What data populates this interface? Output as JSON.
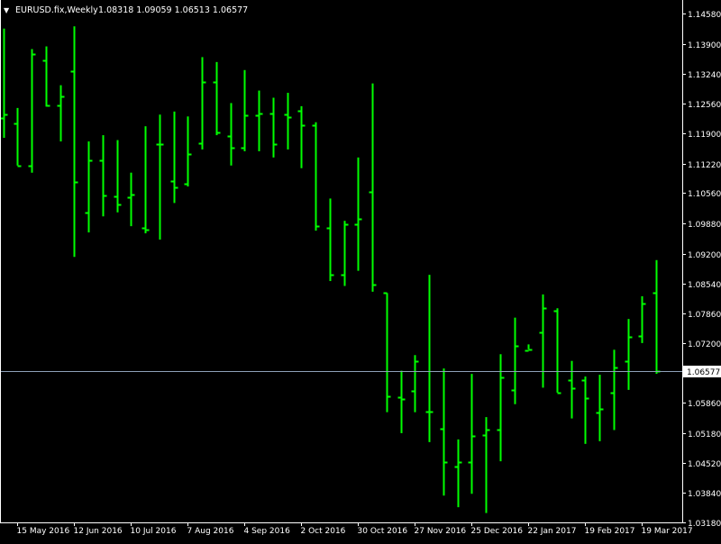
{
  "header": {
    "menu_glyph": "▼",
    "symbol_label": "EURUSD.fix,Weekly",
    "ohlc_text": "1.08318 1.09059 1.06513 1.06577"
  },
  "colors": {
    "background": "#000000",
    "bar": "#00FF00",
    "axis": "#FFFFFF",
    "current_price_line": "#8EA0B8",
    "current_price_label_bg": "#FFFFFF",
    "current_price_label_text": "#000000"
  },
  "chart_data": {
    "type": "ohlc",
    "timeframe": "Weekly",
    "y_axis": {
      "range": [
        1.0318,
        1.1485
      ],
      "ticks": [
        "1.14580",
        "1.13900",
        "1.13240",
        "1.12560",
        "1.11900",
        "1.11220",
        "1.10560",
        "1.09880",
        "1.09200",
        "1.08540",
        "1.07860",
        "1.07200",
        "1.06520",
        "1.05860",
        "1.05180",
        "1.04520",
        "1.03840",
        "1.03180"
      ],
      "position": "right"
    },
    "x_axis": {
      "labels": [
        "15 May 2016",
        "12 Jun 2016",
        "10 Jul 2016",
        "7 Aug 2016",
        "4 Sep 2016",
        "2 Oct 2016",
        "30 Oct 2016",
        "27 Nov 2016",
        "25 Dec 2016",
        "22 Jan 2017",
        "19 Feb 2017",
        "19 Mar 2017"
      ],
      "label_bar_index": [
        1,
        5,
        9,
        13,
        17,
        21,
        25,
        29,
        33,
        37,
        41,
        45
      ]
    },
    "current_price": "1.06577",
    "bars": [
      {
        "o": 1.1225,
        "h": 1.1425,
        "l": 1.118,
        "c": 1.1232
      },
      {
        "o": 1.1212,
        "h": 1.1247,
        "l": 1.1118,
        "c": 1.1118
      },
      {
        "o": 1.1118,
        "h": 1.1379,
        "l": 1.1102,
        "c": 1.1368
      },
      {
        "o": 1.1354,
        "h": 1.1385,
        "l": 1.125,
        "c": 1.1253
      },
      {
        "o": 1.1253,
        "h": 1.1298,
        "l": 1.1172,
        "c": 1.1272
      },
      {
        "o": 1.133,
        "h": 1.143,
        "l": 1.0913,
        "c": 1.1082
      },
      {
        "o": 1.1012,
        "h": 1.1172,
        "l": 1.0968,
        "c": 1.1129
      },
      {
        "o": 1.1129,
        "h": 1.1186,
        "l": 1.1004,
        "c": 1.1051
      },
      {
        "o": 1.1048,
        "h": 1.1175,
        "l": 1.1013,
        "c": 1.103
      },
      {
        "o": 1.1046,
        "h": 1.1102,
        "l": 1.0982,
        "c": 1.1052
      },
      {
        "o": 1.0979,
        "h": 1.1206,
        "l": 1.0966,
        "c": 1.0975
      },
      {
        "o": 1.1165,
        "h": 1.1232,
        "l": 1.0952,
        "c": 1.1165
      },
      {
        "o": 1.1084,
        "h": 1.1239,
        "l": 1.1034,
        "c": 1.107
      },
      {
        "o": 1.1078,
        "h": 1.1228,
        "l": 1.1071,
        "c": 1.1143
      },
      {
        "o": 1.1168,
        "h": 1.1361,
        "l": 1.1154,
        "c": 1.1305
      },
      {
        "o": 1.1305,
        "h": 1.135,
        "l": 1.1186,
        "c": 1.1193
      },
      {
        "o": 1.1184,
        "h": 1.1258,
        "l": 1.1118,
        "c": 1.1158
      },
      {
        "o": 1.1158,
        "h": 1.1332,
        "l": 1.115,
        "c": 1.1231
      },
      {
        "o": 1.1231,
        "h": 1.1286,
        "l": 1.115,
        "c": 1.1235
      },
      {
        "o": 1.1235,
        "h": 1.127,
        "l": 1.1136,
        "c": 1.1167
      },
      {
        "o": 1.1233,
        "h": 1.1281,
        "l": 1.1154,
        "c": 1.1227
      },
      {
        "o": 1.124,
        "h": 1.1251,
        "l": 1.1112,
        "c": 1.1208
      },
      {
        "o": 1.1208,
        "h": 1.1215,
        "l": 1.0972,
        "c": 1.0982
      },
      {
        "o": 1.0978,
        "h": 1.1044,
        "l": 1.0859,
        "c": 1.0874
      },
      {
        "o": 1.0874,
        "h": 1.0994,
        "l": 1.0848,
        "c": 1.0986
      },
      {
        "o": 1.0986,
        "h": 1.1136,
        "l": 1.0882,
        "c": 1.0998
      },
      {
        "o": 1.1058,
        "h": 1.1302,
        "l": 1.0835,
        "c": 1.0852
      },
      {
        "o": 1.0832,
        "h": 1.0832,
        "l": 1.0565,
        "c": 1.06
      },
      {
        "o": 1.0598,
        "h": 1.0658,
        "l": 1.0518,
        "c": 1.0595
      },
      {
        "o": 1.0613,
        "h": 1.0693,
        "l": 1.0565,
        "c": 1.0679
      },
      {
        "o": 1.0567,
        "h": 1.0873,
        "l": 1.0498,
        "c": 1.0567
      },
      {
        "o": 1.0528,
        "h": 1.0663,
        "l": 1.0378,
        "c": 1.0454
      },
      {
        "o": 1.0443,
        "h": 1.0504,
        "l": 1.0352,
        "c": 1.0454
      },
      {
        "o": 1.0454,
        "h": 1.0651,
        "l": 1.0382,
        "c": 1.0511
      },
      {
        "o": 1.0514,
        "h": 1.0554,
        "l": 1.0339,
        "c": 1.0525
      },
      {
        "o": 1.0525,
        "h": 1.0695,
        "l": 1.0455,
        "c": 1.0643
      },
      {
        "o": 1.0614,
        "h": 1.0777,
        "l": 1.0583,
        "c": 1.0713
      },
      {
        "o": 1.0704,
        "h": 1.0717,
        "l": 1.0706,
        "c": 1.0706
      },
      {
        "o": 1.0744,
        "h": 1.0829,
        "l": 1.062,
        "c": 1.0798
      },
      {
        "o": 1.0793,
        "h": 1.0798,
        "l": 1.0609,
        "c": 1.0609
      },
      {
        "o": 1.0638,
        "h": 1.068,
        "l": 1.0551,
        "c": 1.0618
      },
      {
        "o": 1.0637,
        "h": 1.0645,
        "l": 1.0494,
        "c": 1.0596
      },
      {
        "o": 1.0565,
        "h": 1.0649,
        "l": 1.05,
        "c": 1.0573
      },
      {
        "o": 1.0609,
        "h": 1.0705,
        "l": 1.0525,
        "c": 1.0665
      },
      {
        "o": 1.068,
        "h": 1.0774,
        "l": 1.0615,
        "c": 1.0733
      },
      {
        "o": 1.0736,
        "h": 1.0825,
        "l": 1.072,
        "c": 1.0809
      },
      {
        "o": 1.0832,
        "h": 1.0906,
        "l": 1.0651,
        "c": 1.0658
      }
    ]
  }
}
